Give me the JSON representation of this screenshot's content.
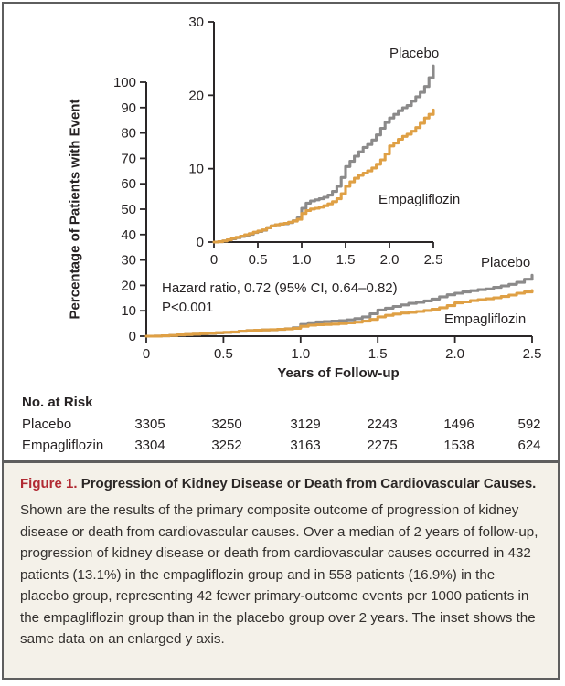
{
  "figure": {
    "caption_label": "Figure 1.",
    "caption_title": "Progression of Kidney Disease or Death from Cardiovascular Causes.",
    "caption_body": "Shown are the results of the primary composite outcome of progression of kidney disease or death from cardiovascular causes. Over a median of 2 years of follow-up, progression of kidney disease or death from cardiovascular causes occurred in 432 patients (13.1%) in the empagliflozin group and in 558 patients (16.9%) in the placebo group, representing 42 fewer primary-outcome events per 1000 patients in the empagliflozin group than in the placebo group over 2 years. The inset shows the same data on an enlarged y axis."
  },
  "colors": {
    "placebo": "#8b8a8a",
    "empagliflozin": "#dfa045",
    "axis": "#2a2627",
    "text": "#262223",
    "accent_red": "#b12a33",
    "caption_bg": "#f4f1e9",
    "border": "#5e5e5e"
  },
  "risk_table": {
    "title": "No. at Risk",
    "rows": [
      {
        "label": "Placebo",
        "values": [
          "3305",
          "3250",
          "3129",
          "2243",
          "1496",
          "592"
        ]
      },
      {
        "label": "Empagliflozin",
        "values": [
          "3304",
          "3252",
          "3163",
          "2275",
          "1538",
          "624"
        ]
      }
    ]
  },
  "chart_data": {
    "type": "line",
    "title": "",
    "xlabel": "Years of Follow-up",
    "ylabel": "Percentage of Patients with Event",
    "annotation_line1": "Hazard ratio, 0.72 (95% CI, 0.64–0.82)",
    "annotation_line2": "P<0.001",
    "x_tick_labels": [
      "0",
      "0.5",
      "1.0",
      "1.5",
      "2.0",
      "2.5"
    ],
    "x_tick_values": [
      0,
      0.5,
      1.0,
      1.5,
      2.0,
      2.5
    ],
    "main_axis": {
      "ylim": [
        0,
        100
      ],
      "yticks": [
        0,
        10,
        20,
        30,
        40,
        50,
        60,
        70,
        80,
        90,
        100
      ],
      "xlim": [
        0,
        2.5
      ]
    },
    "inset_axis": {
      "ylim": [
        0,
        30
      ],
      "yticks": [
        0,
        10,
        20,
        30
      ],
      "xlim": [
        0,
        2.5
      ],
      "note": "inset shows the same data on an enlarged y axis"
    },
    "x": [
      0,
      0.05,
      0.1,
      0.15,
      0.2,
      0.25,
      0.3,
      0.35,
      0.4,
      0.45,
      0.5,
      0.55,
      0.6,
      0.65,
      0.7,
      0.75,
      0.8,
      0.85,
      0.9,
      0.95,
      1.0,
      1.05,
      1.1,
      1.15,
      1.2,
      1.25,
      1.3,
      1.35,
      1.4,
      1.45,
      1.5,
      1.55,
      1.6,
      1.65,
      1.7,
      1.75,
      1.8,
      1.85,
      1.9,
      1.95,
      2.0,
      2.05,
      2.1,
      2.15,
      2.2,
      2.25,
      2.3,
      2.35,
      2.4,
      2.45,
      2.5
    ],
    "series": [
      {
        "name": "Placebo",
        "color": "#8b8a8a",
        "values": [
          0,
          0.05,
          0.15,
          0.3,
          0.45,
          0.6,
          0.75,
          0.9,
          1.05,
          1.3,
          1.45,
          1.6,
          1.95,
          2.2,
          2.35,
          2.45,
          2.5,
          2.65,
          2.9,
          3.3,
          4.6,
          5.3,
          5.6,
          5.75,
          5.9,
          6.1,
          6.4,
          6.9,
          7.6,
          8.8,
          10.3,
          11.0,
          11.7,
          12.3,
          12.9,
          13.3,
          13.9,
          14.6,
          15.5,
          16.3,
          16.9,
          17.4,
          17.9,
          18.3,
          18.6,
          19.2,
          19.8,
          20.4,
          21.2,
          22.4,
          24.0
        ]
      },
      {
        "name": "Empagliflozin",
        "color": "#dfa045",
        "values": [
          0,
          0.05,
          0.15,
          0.3,
          0.5,
          0.65,
          0.8,
          1.0,
          1.15,
          1.35,
          1.5,
          1.65,
          1.95,
          2.2,
          2.35,
          2.45,
          2.55,
          2.7,
          2.85,
          3.1,
          3.9,
          4.3,
          4.5,
          4.6,
          4.75,
          4.95,
          5.2,
          5.5,
          5.9,
          6.6,
          7.6,
          8.2,
          8.7,
          9.1,
          9.4,
          9.7,
          10.1,
          10.6,
          11.2,
          12.0,
          13.1,
          13.5,
          14.0,
          14.4,
          14.7,
          15.1,
          15.6,
          16.2,
          16.9,
          17.4,
          18.0
        ]
      }
    ],
    "key_values": {
      "empagliflozin_events": "432 patients (13.1%)",
      "placebo_events": "558 patients (16.9%)"
    }
  }
}
